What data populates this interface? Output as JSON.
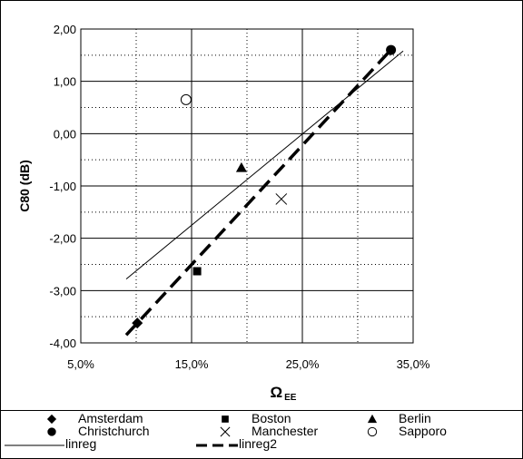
{
  "chart_data": {
    "type": "scatter",
    "title": "",
    "xlabel": "Ω",
    "xlabel_sub": "EE",
    "ylabel": "C80 (dB)",
    "xlim": [
      0.05,
      0.35
    ],
    "ylim": [
      -4.0,
      2.0
    ],
    "x_ticks": [
      0.05,
      0.15,
      0.25,
      0.35
    ],
    "x_tick_labels": [
      "5,0%",
      "15,0%",
      "25,0%",
      "35,0%"
    ],
    "y_ticks": [
      2.0,
      1.0,
      0.0,
      -1.0,
      -2.0,
      -3.0,
      -4.0
    ],
    "y_tick_labels": [
      "2,00",
      "1,00",
      "0,00",
      "-1,00",
      "-2,00",
      "-3,00",
      "-4,00"
    ],
    "grid": "major solid, minor dotted",
    "legend_position": "bottom",
    "series": [
      {
        "name": "Amsterdam",
        "marker": "diamond",
        "x": [
          0.101
        ],
        "y": [
          -3.62
        ]
      },
      {
        "name": "Boston",
        "marker": "square",
        "x": [
          0.155
        ],
        "y": [
          -2.63
        ]
      },
      {
        "name": "Berlin",
        "marker": "triangle",
        "x": [
          0.195
        ],
        "y": [
          -0.65
        ]
      },
      {
        "name": "Christchurch",
        "marker": "circle",
        "x": [
          0.33
        ],
        "y": [
          1.6
        ]
      },
      {
        "name": "Manchester",
        "marker": "x",
        "x": [
          0.231
        ],
        "y": [
          -1.25
        ]
      },
      {
        "name": "Sapporo",
        "marker": "open-circle",
        "x": [
          0.145
        ],
        "y": [
          0.65
        ]
      }
    ],
    "lines": [
      {
        "name": "linreg",
        "style": "thin-solid",
        "x": [
          0.091,
          0.341
        ],
        "y": [
          -2.78,
          1.58
        ]
      },
      {
        "name": "linreg2",
        "style": "thick-dashed",
        "x": [
          0.091,
          0.329
        ],
        "y": [
          -3.85,
          1.58
        ]
      }
    ]
  }
}
